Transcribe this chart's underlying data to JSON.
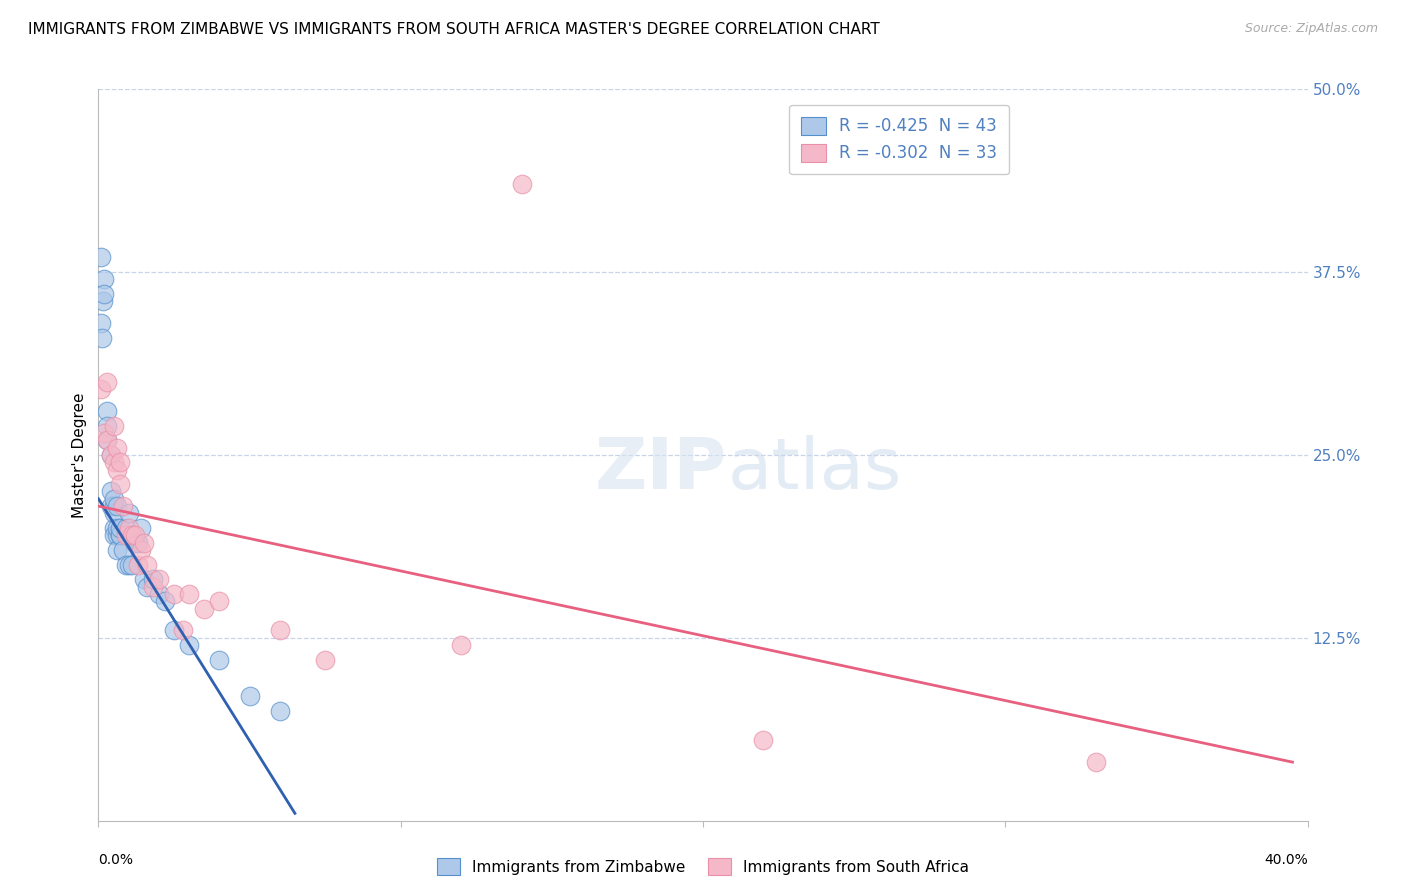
{
  "title": "IMMIGRANTS FROM ZIMBABWE VS IMMIGRANTS FROM SOUTH AFRICA MASTER'S DEGREE CORRELATION CHART",
  "source": "Source: ZipAtlas.com",
  "ylabel": "Master's Degree",
  "right_yticks": [
    "50.0%",
    "37.5%",
    "25.0%",
    "12.5%"
  ],
  "right_ytick_vals": [
    0.5,
    0.375,
    0.25,
    0.125
  ],
  "legend_entry1_r": "R = -0.425",
  "legend_entry1_n": "  N = 43",
  "legend_entry2_r": "R = -0.302",
  "legend_entry2_n": "  N = 33",
  "color_blue_fill": "#adc8e8",
  "color_blue_edge": "#5590cc",
  "color_pink_fill": "#f5b8c8",
  "color_pink_edge": "#e890a8",
  "color_blue_line": "#3060b0",
  "color_pink_line": "#e86080",
  "color_blue_text": "#5080c0",
  "color_grid": "#c8d4e8",
  "background_color": "#ffffff",
  "title_fontsize": 11,
  "source_fontsize": 9,
  "xlim": [
    0.0,
    0.4
  ],
  "ylim": [
    0.0,
    0.5
  ],
  "zim_x": [
    0.0008,
    0.001,
    0.0012,
    0.0015,
    0.002,
    0.002,
    0.003,
    0.003,
    0.003,
    0.004,
    0.004,
    0.004,
    0.005,
    0.005,
    0.005,
    0.005,
    0.005,
    0.006,
    0.006,
    0.006,
    0.006,
    0.007,
    0.007,
    0.007,
    0.008,
    0.009,
    0.009,
    0.01,
    0.01,
    0.011,
    0.012,
    0.013,
    0.014,
    0.015,
    0.016,
    0.018,
    0.02,
    0.022,
    0.025,
    0.03,
    0.04,
    0.05,
    0.06
  ],
  "zim_y": [
    0.385,
    0.34,
    0.33,
    0.355,
    0.37,
    0.36,
    0.28,
    0.26,
    0.27,
    0.25,
    0.225,
    0.215,
    0.215,
    0.2,
    0.195,
    0.21,
    0.22,
    0.195,
    0.185,
    0.2,
    0.215,
    0.195,
    0.195,
    0.2,
    0.185,
    0.175,
    0.2,
    0.21,
    0.175,
    0.175,
    0.19,
    0.19,
    0.2,
    0.165,
    0.16,
    0.165,
    0.155,
    0.15,
    0.13,
    0.12,
    0.11,
    0.085,
    0.075
  ],
  "sa_x": [
    0.001,
    0.002,
    0.003,
    0.003,
    0.004,
    0.005,
    0.005,
    0.006,
    0.006,
    0.007,
    0.007,
    0.008,
    0.009,
    0.01,
    0.011,
    0.012,
    0.013,
    0.014,
    0.015,
    0.016,
    0.018,
    0.02,
    0.025,
    0.028,
    0.03,
    0.035,
    0.04,
    0.06,
    0.075,
    0.12,
    0.14,
    0.22,
    0.33
  ],
  "sa_y": [
    0.295,
    0.265,
    0.3,
    0.26,
    0.25,
    0.27,
    0.245,
    0.24,
    0.255,
    0.23,
    0.245,
    0.215,
    0.195,
    0.2,
    0.195,
    0.195,
    0.175,
    0.185,
    0.19,
    0.175,
    0.16,
    0.165,
    0.155,
    0.13,
    0.155,
    0.145,
    0.15,
    0.13,
    0.11,
    0.12,
    0.435,
    0.055,
    0.04
  ],
  "zim_trend_x": [
    0.0,
    0.065
  ],
  "zim_trend_y": [
    0.22,
    0.005
  ],
  "sa_trend_x": [
    0.0,
    0.395
  ],
  "sa_trend_y": [
    0.215,
    0.04
  ]
}
